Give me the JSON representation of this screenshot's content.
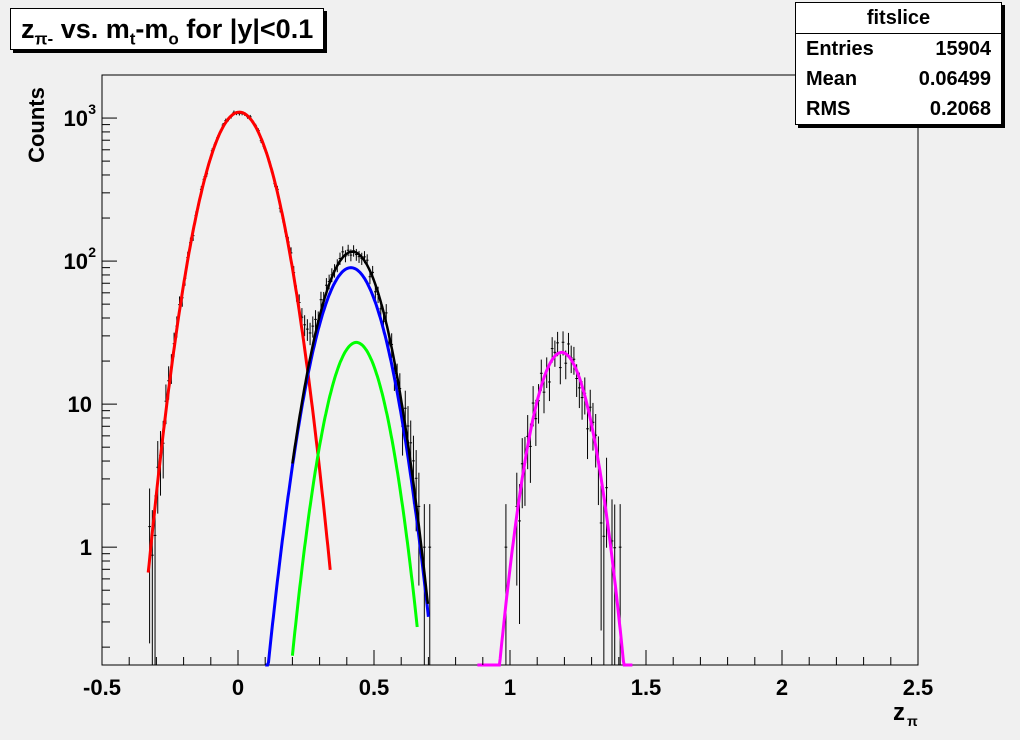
{
  "title": {
    "z": "z",
    "z_sub": "π-",
    "mid": " vs. m",
    "m_sub": "t",
    "mid2": "-m",
    "o_sub": "o",
    "rest": " for |y|<0.1"
  },
  "stats": {
    "name": "fitslice",
    "rows": [
      {
        "key": "Entries",
        "value": "15904"
      },
      {
        "key": "Mean",
        "value": "0.06499"
      },
      {
        "key": "RMS",
        "value": "0.2068"
      }
    ]
  },
  "chart_data": {
    "type": "line",
    "xlabel": "z",
    "xlabel_sub": "π",
    "ylabel": "Counts",
    "xlim": [
      -0.5,
      2.5
    ],
    "ylim": [
      0.15,
      2000
    ],
    "log_y": true,
    "grid": false,
    "x_ticks": [
      {
        "v": -0.5,
        "label": "-0.5"
      },
      {
        "v": 0,
        "label": "0"
      },
      {
        "v": 0.5,
        "label": "0.5"
      },
      {
        "v": 1,
        "label": "1"
      },
      {
        "v": 1.5,
        "label": "1.5"
      },
      {
        "v": 2,
        "label": "2"
      },
      {
        "v": 2.5,
        "label": "2.5"
      }
    ],
    "y_ticks": [
      {
        "v": 1,
        "label": "1"
      },
      {
        "v": 10,
        "label": "10"
      },
      {
        "v": 100,
        "label": "10",
        "exp": "2"
      },
      {
        "v": 1000,
        "label": "10",
        "exp": "3"
      }
    ],
    "series": [
      {
        "role": "red fit",
        "color": "#ff0000",
        "amp": 1100,
        "mean": 0.005,
        "sigma": 0.087,
        "from": -0.33,
        "to": 0.34
      },
      {
        "role": "blue fit",
        "color": "#0000ff",
        "amp": 90,
        "mean": 0.415,
        "sigma": 0.085,
        "from": 0.1,
        "to": 0.7
      },
      {
        "role": "green fit",
        "color": "#00ff00",
        "amp": 27,
        "mean": 0.435,
        "sigma": 0.074,
        "from": 0.2,
        "to": 0.66
      },
      {
        "role": "magenta fit",
        "color": "#ff00ff",
        "amp": 23,
        "mean": 1.19,
        "sigma": 0.072,
        "from": 0.88,
        "to": 1.45
      },
      {
        "role": "black total fit",
        "color": "#000000",
        "sum_of": [
          1,
          2
        ],
        "from": 0.2,
        "to": 0.7
      }
    ],
    "histogram": {
      "color": "#000000",
      "bin_width": 0.01,
      "x_start": -0.35,
      "nbins": 180,
      "bin_counts_from": "sum of the fitted gaussians with scatter",
      "extra_bins": [
        {
          "x": -0.28,
          "y": 2
        },
        {
          "x": -0.27,
          "y": 3
        },
        {
          "x": 0.68,
          "y": 1
        },
        {
          "x": 0.7,
          "y": 1
        },
        {
          "x": 0.98,
          "y": 1
        },
        {
          "x": 1.4,
          "y": 1
        }
      ]
    }
  }
}
